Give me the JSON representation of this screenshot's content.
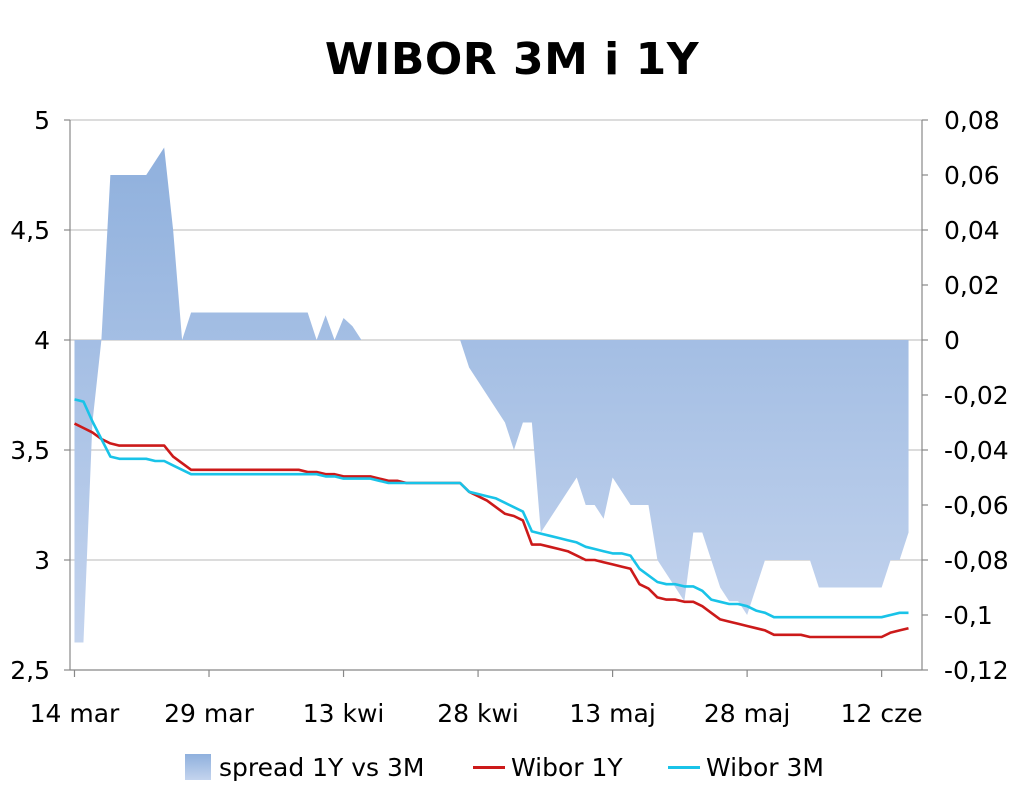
{
  "chart_data": {
    "type": "line",
    "title": "WIBOR 3M i 1Y",
    "y_left": {
      "ylim": [
        2.5,
        5.0
      ],
      "ticks": [
        "2,5",
        "3",
        "3,5",
        "4",
        "4,5",
        "5"
      ],
      "tick_values": [
        2.5,
        3.0,
        3.5,
        4.0,
        4.5,
        5.0
      ]
    },
    "y_right": {
      "ylim": [
        -0.12,
        0.08
      ],
      "ticks": [
        "-0,12",
        "-0,1",
        "-0,08",
        "-0,06",
        "-0,04",
        "-0,02",
        "0",
        "0,02",
        "0,04",
        "0,06",
        "0,08"
      ],
      "tick_values": [
        -0.12,
        -0.1,
        -0.08,
        -0.06,
        -0.04,
        -0.02,
        0,
        0.02,
        0.04,
        0.06,
        0.08
      ]
    },
    "x_ticks": [
      {
        "label": "14 mar",
        "day": 0
      },
      {
        "label": "29 mar",
        "day": 15
      },
      {
        "label": "13 kwi",
        "day": 30
      },
      {
        "label": "28 kwi",
        "day": 45
      },
      {
        "label": "13 maj",
        "day": 60
      },
      {
        "label": "28 maj",
        "day": 75
      },
      {
        "label": "12 cze",
        "day": 90
      }
    ],
    "x_range": [
      -0.5,
      94.5
    ],
    "grid": "horizontal",
    "legend_position": "bottom",
    "series": [
      {
        "name": "spread 1Y vs 3M",
        "kind": "area",
        "axis": "right",
        "color_top": "#8fb0dd",
        "color_bottom": "#c4d4ee",
        "points": [
          [
            0,
            -0.11
          ],
          [
            1,
            -0.11
          ],
          [
            2,
            -0.03
          ],
          [
            3,
            0.0
          ],
          [
            4,
            0.06
          ],
          [
            5,
            0.06
          ],
          [
            6,
            0.06
          ],
          [
            7,
            0.06
          ],
          [
            8,
            0.06
          ],
          [
            9,
            0.065
          ],
          [
            10,
            0.07
          ],
          [
            11,
            0.04
          ],
          [
            12,
            0.0
          ],
          [
            13,
            0.01
          ],
          [
            14,
            0.01
          ],
          [
            15,
            0.01
          ],
          [
            16,
            0.01
          ],
          [
            17,
            0.01
          ],
          [
            18,
            0.01
          ],
          [
            19,
            0.01
          ],
          [
            20,
            0.01
          ],
          [
            21,
            0.01
          ],
          [
            22,
            0.01
          ],
          [
            23,
            0.01
          ],
          [
            24,
            0.01
          ],
          [
            25,
            0.01
          ],
          [
            26,
            0.01
          ],
          [
            27,
            0.0
          ],
          [
            28,
            0.009
          ],
          [
            29,
            0.0
          ],
          [
            30,
            0.008
          ],
          [
            31,
            0.005
          ],
          [
            32,
            0.0
          ],
          [
            33,
            0.0
          ],
          [
            34,
            0.0
          ],
          [
            35,
            0.0
          ],
          [
            36,
            0.0
          ],
          [
            37,
            0.0
          ],
          [
            38,
            0.0
          ],
          [
            39,
            0.0
          ],
          [
            40,
            0.0
          ],
          [
            41,
            0.0
          ],
          [
            42,
            0.0
          ],
          [
            43,
            0.0
          ],
          [
            44,
            -0.01
          ],
          [
            45,
            -0.015
          ],
          [
            46,
            -0.02
          ],
          [
            47,
            -0.025
          ],
          [
            48,
            -0.03
          ],
          [
            49,
            -0.04
          ],
          [
            50,
            -0.03
          ],
          [
            51,
            -0.03
          ],
          [
            52,
            -0.07
          ],
          [
            53,
            -0.065
          ],
          [
            54,
            -0.06
          ],
          [
            55,
            -0.055
          ],
          [
            56,
            -0.05
          ],
          [
            57,
            -0.06
          ],
          [
            58,
            -0.06
          ],
          [
            59,
            -0.065
          ],
          [
            60,
            -0.05
          ],
          [
            61,
            -0.055
          ],
          [
            62,
            -0.06
          ],
          [
            63,
            -0.06
          ],
          [
            64,
            -0.06
          ],
          [
            65,
            -0.08
          ],
          [
            66,
            -0.085
          ],
          [
            67,
            -0.09
          ],
          [
            68,
            -0.095
          ],
          [
            69,
            -0.07
          ],
          [
            70,
            -0.07
          ],
          [
            71,
            -0.08
          ],
          [
            72,
            -0.09
          ],
          [
            73,
            -0.095
          ],
          [
            74,
            -0.095
          ],
          [
            75,
            -0.1
          ],
          [
            76,
            -0.09
          ],
          [
            77,
            -0.08
          ],
          [
            78,
            -0.08
          ],
          [
            79,
            -0.08
          ],
          [
            80,
            -0.08
          ],
          [
            81,
            -0.08
          ],
          [
            82,
            -0.08
          ],
          [
            83,
            -0.09
          ],
          [
            84,
            -0.09
          ],
          [
            85,
            -0.09
          ],
          [
            86,
            -0.09
          ],
          [
            87,
            -0.09
          ],
          [
            88,
            -0.09
          ],
          [
            89,
            -0.09
          ],
          [
            90,
            -0.09
          ],
          [
            91,
            -0.08
          ],
          [
            92,
            -0.08
          ],
          [
            93,
            -0.07
          ]
        ]
      },
      {
        "name": "Wibor 1Y",
        "kind": "line",
        "axis": "left",
        "color": "#cc1a1a",
        "points": [
          [
            0,
            3.62
          ],
          [
            1,
            3.6
          ],
          [
            2,
            3.58
          ],
          [
            3,
            3.55
          ],
          [
            4,
            3.53
          ],
          [
            5,
            3.52
          ],
          [
            6,
            3.52
          ],
          [
            7,
            3.52
          ],
          [
            8,
            3.52
          ],
          [
            9,
            3.52
          ],
          [
            10,
            3.52
          ],
          [
            11,
            3.47
          ],
          [
            12,
            3.44
          ],
          [
            13,
            3.41
          ],
          [
            14,
            3.41
          ],
          [
            15,
            3.41
          ],
          [
            16,
            3.41
          ],
          [
            17,
            3.41
          ],
          [
            18,
            3.41
          ],
          [
            19,
            3.41
          ],
          [
            20,
            3.41
          ],
          [
            21,
            3.41
          ],
          [
            22,
            3.41
          ],
          [
            23,
            3.41
          ],
          [
            24,
            3.41
          ],
          [
            25,
            3.41
          ],
          [
            26,
            3.4
          ],
          [
            27,
            3.4
          ],
          [
            28,
            3.39
          ],
          [
            29,
            3.39
          ],
          [
            30,
            3.38
          ],
          [
            31,
            3.38
          ],
          [
            32,
            3.38
          ],
          [
            33,
            3.38
          ],
          [
            34,
            3.37
          ],
          [
            35,
            3.36
          ],
          [
            36,
            3.36
          ],
          [
            37,
            3.35
          ],
          [
            38,
            3.35
          ],
          [
            39,
            3.35
          ],
          [
            40,
            3.35
          ],
          [
            41,
            3.35
          ],
          [
            42,
            3.35
          ],
          [
            43,
            3.35
          ],
          [
            44,
            3.31
          ],
          [
            45,
            3.29
          ],
          [
            46,
            3.27
          ],
          [
            47,
            3.24
          ],
          [
            48,
            3.21
          ],
          [
            49,
            3.2
          ],
          [
            50,
            3.18
          ],
          [
            51,
            3.07
          ],
          [
            52,
            3.07
          ],
          [
            53,
            3.06
          ],
          [
            54,
            3.05
          ],
          [
            55,
            3.04
          ],
          [
            56,
            3.02
          ],
          [
            57,
            3.0
          ],
          [
            58,
            3.0
          ],
          [
            59,
            2.99
          ],
          [
            60,
            2.98
          ],
          [
            61,
            2.97
          ],
          [
            62,
            2.96
          ],
          [
            63,
            2.89
          ],
          [
            64,
            2.87
          ],
          [
            65,
            2.83
          ],
          [
            66,
            2.82
          ],
          [
            67,
            2.82
          ],
          [
            68,
            2.81
          ],
          [
            69,
            2.81
          ],
          [
            70,
            2.79
          ],
          [
            71,
            2.76
          ],
          [
            72,
            2.73
          ],
          [
            73,
            2.72
          ],
          [
            74,
            2.71
          ],
          [
            75,
            2.7
          ],
          [
            76,
            2.69
          ],
          [
            77,
            2.68
          ],
          [
            78,
            2.66
          ],
          [
            79,
            2.66
          ],
          [
            80,
            2.66
          ],
          [
            81,
            2.66
          ],
          [
            82,
            2.65
          ],
          [
            83,
            2.65
          ],
          [
            84,
            2.65
          ],
          [
            85,
            2.65
          ],
          [
            86,
            2.65
          ],
          [
            87,
            2.65
          ],
          [
            88,
            2.65
          ],
          [
            89,
            2.65
          ],
          [
            90,
            2.65
          ],
          [
            91,
            2.67
          ],
          [
            92,
            2.68
          ],
          [
            93,
            2.69
          ]
        ]
      },
      {
        "name": "Wibor 3M",
        "kind": "line",
        "axis": "left",
        "color": "#19c3e8",
        "points": [
          [
            0,
            3.73
          ],
          [
            1,
            3.72
          ],
          [
            2,
            3.63
          ],
          [
            3,
            3.55
          ],
          [
            4,
            3.47
          ],
          [
            5,
            3.46
          ],
          [
            6,
            3.46
          ],
          [
            7,
            3.46
          ],
          [
            8,
            3.46
          ],
          [
            9,
            3.45
          ],
          [
            10,
            3.45
          ],
          [
            11,
            3.43
          ],
          [
            12,
            3.41
          ],
          [
            13,
            3.39
          ],
          [
            14,
            3.39
          ],
          [
            15,
            3.39
          ],
          [
            16,
            3.39
          ],
          [
            17,
            3.39
          ],
          [
            18,
            3.39
          ],
          [
            19,
            3.39
          ],
          [
            20,
            3.39
          ],
          [
            21,
            3.39
          ],
          [
            22,
            3.39
          ],
          [
            23,
            3.39
          ],
          [
            24,
            3.39
          ],
          [
            25,
            3.39
          ],
          [
            26,
            3.39
          ],
          [
            27,
            3.39
          ],
          [
            28,
            3.38
          ],
          [
            29,
            3.38
          ],
          [
            30,
            3.37
          ],
          [
            31,
            3.37
          ],
          [
            32,
            3.37
          ],
          [
            33,
            3.37
          ],
          [
            34,
            3.36
          ],
          [
            35,
            3.35
          ],
          [
            36,
            3.35
          ],
          [
            37,
            3.35
          ],
          [
            38,
            3.35
          ],
          [
            39,
            3.35
          ],
          [
            40,
            3.35
          ],
          [
            41,
            3.35
          ],
          [
            42,
            3.35
          ],
          [
            43,
            3.35
          ],
          [
            44,
            3.31
          ],
          [
            45,
            3.3
          ],
          [
            46,
            3.29
          ],
          [
            47,
            3.28
          ],
          [
            48,
            3.26
          ],
          [
            49,
            3.24
          ],
          [
            50,
            3.22
          ],
          [
            51,
            3.13
          ],
          [
            52,
            3.12
          ],
          [
            53,
            3.11
          ],
          [
            54,
            3.1
          ],
          [
            55,
            3.09
          ],
          [
            56,
            3.08
          ],
          [
            57,
            3.06
          ],
          [
            58,
            3.05
          ],
          [
            59,
            3.04
          ],
          [
            60,
            3.03
          ],
          [
            61,
            3.03
          ],
          [
            62,
            3.02
          ],
          [
            63,
            2.96
          ],
          [
            64,
            2.93
          ],
          [
            65,
            2.9
          ],
          [
            66,
            2.89
          ],
          [
            67,
            2.89
          ],
          [
            68,
            2.88
          ],
          [
            69,
            2.88
          ],
          [
            70,
            2.86
          ],
          [
            71,
            2.82
          ],
          [
            72,
            2.81
          ],
          [
            73,
            2.8
          ],
          [
            74,
            2.8
          ],
          [
            75,
            2.79
          ],
          [
            76,
            2.77
          ],
          [
            77,
            2.76
          ],
          [
            78,
            2.74
          ],
          [
            79,
            2.74
          ],
          [
            80,
            2.74
          ],
          [
            81,
            2.74
          ],
          [
            82,
            2.74
          ],
          [
            83,
            2.74
          ],
          [
            84,
            2.74
          ],
          [
            85,
            2.74
          ],
          [
            86,
            2.74
          ],
          [
            87,
            2.74
          ],
          [
            88,
            2.74
          ],
          [
            89,
            2.74
          ],
          [
            90,
            2.74
          ],
          [
            91,
            2.75
          ],
          [
            92,
            2.76
          ],
          [
            93,
            2.76
          ]
        ]
      }
    ]
  }
}
